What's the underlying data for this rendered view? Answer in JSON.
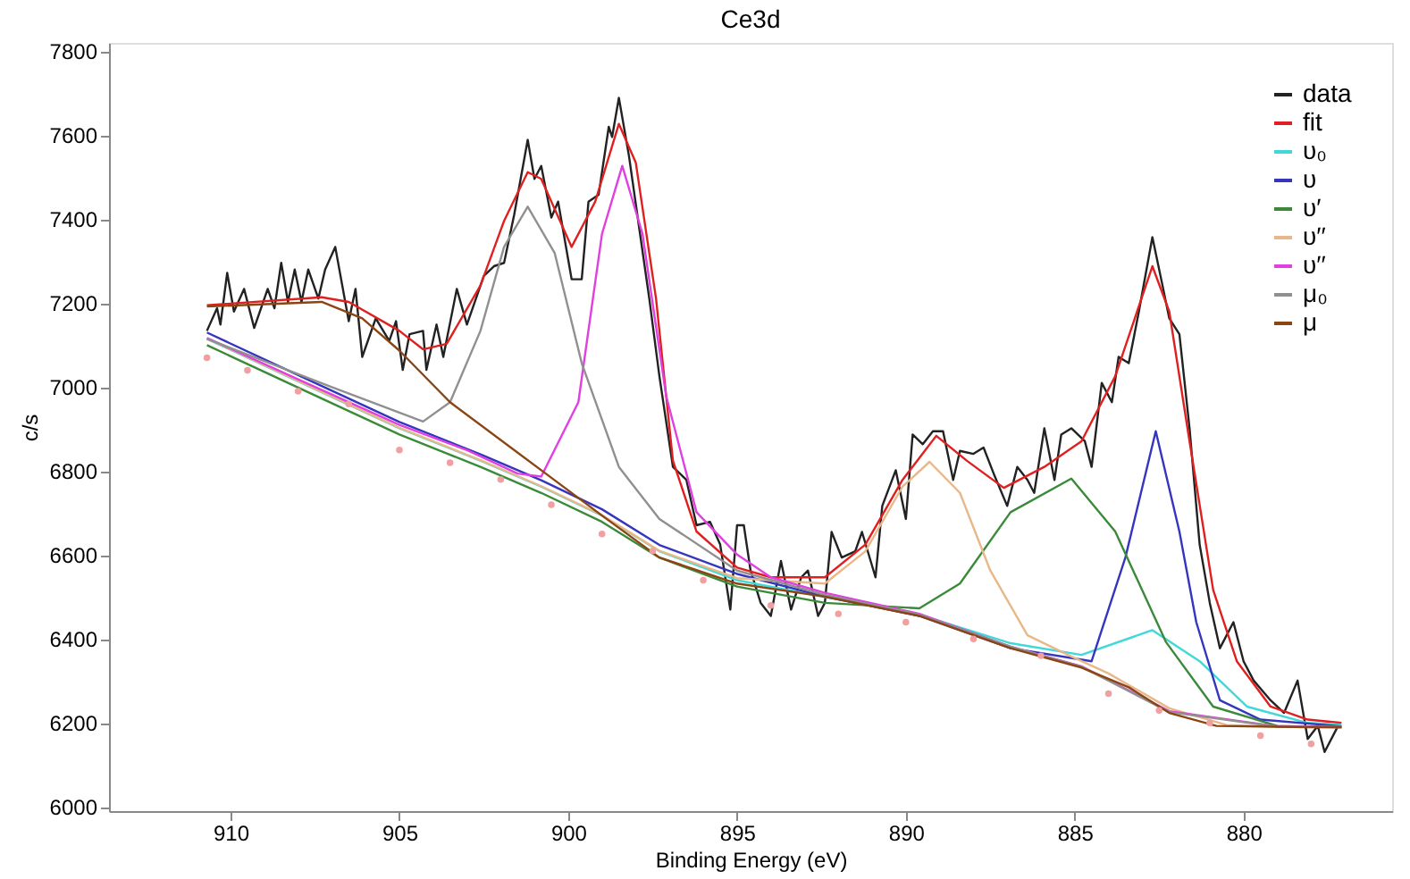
{
  "chart_data": {
    "type": "line",
    "title": "Ce3d",
    "xlabel": "Binding Energy (eV)",
    "ylabel": "c/s",
    "xlim": [
      913.6,
      875.6
    ],
    "ylim": [
      5990,
      7820
    ],
    "xticks": [
      910,
      905,
      900,
      895,
      890,
      885,
      880
    ],
    "yticks": [
      6000,
      6200,
      6400,
      6600,
      6800,
      7000,
      7200,
      7400,
      7600,
      7800
    ],
    "grid": false,
    "legend": "top right",
    "line_style": "solid",
    "series": [
      {
        "name": "data",
        "color": "#222222",
        "x": [
          910.7,
          910.4,
          910.3,
          910.1,
          909.9,
          909.6,
          909.3,
          908.9,
          908.7,
          908.5,
          908.3,
          908.1,
          907.9,
          907.7,
          907.4,
          907.2,
          906.9,
          906.5,
          906.3,
          906.1,
          905.7,
          905.3,
          905.1,
          904.9,
          904.7,
          904.3,
          904.2,
          903.9,
          903.7,
          903.3,
          903.0,
          902.5,
          902.2,
          901.9,
          901.6,
          901.2,
          901.0,
          900.8,
          900.5,
          900.3,
          899.9,
          899.6,
          899.4,
          899.1,
          898.8,
          898.7,
          898.5,
          898.2,
          897.9,
          897.6,
          897.3,
          896.9,
          896.5,
          896.2,
          895.8,
          895.5,
          895.2,
          895.0,
          894.8,
          894.6,
          894.3,
          894.0,
          893.7,
          893.4,
          893.1,
          892.9,
          892.6,
          892.4,
          892.2,
          891.9,
          891.5,
          891.3,
          890.9,
          890.7,
          890.3,
          890.0,
          889.8,
          889.5,
          889.2,
          888.9,
          888.6,
          888.4,
          888.0,
          887.7,
          887.4,
          887.0,
          886.7,
          886.4,
          886.2,
          885.9,
          885.6,
          885.4,
          885.1,
          884.7,
          884.5,
          884.2,
          883.9,
          883.7,
          883.4,
          883.1,
          882.7,
          882.4,
          882.2,
          881.9,
          881.6,
          881.3,
          881.0,
          880.7,
          880.3,
          880.0,
          879.7,
          879.2,
          878.8,
          878.4,
          878.1,
          877.8,
          877.6,
          877.2
        ],
        "values": [
          7134,
          7188,
          7149,
          7272,
          7180,
          7234,
          7141,
          7234,
          7188,
          7296,
          7203,
          7280,
          7203,
          7280,
          7211,
          7280,
          7334,
          7157,
          7234,
          7072,
          7164,
          7110,
          7157,
          7041,
          7126,
          7134,
          7041,
          7149,
          7072,
          7234,
          7149,
          7265,
          7288,
          7296,
          7411,
          7589,
          7496,
          7527,
          7404,
          7442,
          7257,
          7257,
          7442,
          7458,
          7620,
          7596,
          7689,
          7550,
          7380,
          7211,
          7026,
          6810,
          6779,
          6671,
          6679,
          6625,
          6470,
          6671,
          6671,
          6563,
          6486,
          6455,
          6586,
          6470,
          6547,
          6563,
          6455,
          6486,
          6655,
          6594,
          6609,
          6655,
          6547,
          6717,
          6802,
          6686,
          6887,
          6864,
          6895,
          6895,
          6779,
          6848,
          6841,
          6856,
          6794,
          6717,
          6810,
          6779,
          6748,
          6902,
          6779,
          6887,
          6902,
          6871,
          6810,
          7010,
          6964,
          7072,
          7057,
          7180,
          7357,
          7242,
          7164,
          7126,
          6902,
          6625,
          6486,
          6378,
          6440,
          6347,
          6301,
          6254,
          6224,
          6301,
          6162,
          6193,
          6131,
          6193
        ]
      },
      {
        "name": "fit",
        "color": "#e02020",
        "x": [
          910.7,
          907.3,
          906.5,
          905.0,
          904.3,
          903.6,
          902.6,
          901.9,
          901.2,
          900.8,
          899.9,
          899.2,
          898.5,
          898.0,
          897.4,
          896.9,
          896.2,
          895.0,
          894.0,
          892.4,
          891.2,
          890.1,
          889.1,
          888.2,
          887.1,
          885.9,
          884.8,
          883.8,
          882.7,
          882.2,
          881.6,
          880.9,
          880.2,
          879.2,
          878.1,
          877.1
        ],
        "values": [
          7195,
          7214,
          7203,
          7134,
          7090,
          7103,
          7242,
          7396,
          7512,
          7496,
          7334,
          7442,
          7627,
          7535,
          7211,
          6825,
          6656,
          6570,
          6547,
          6547,
          6625,
          6779,
          6884,
          6825,
          6760,
          6810,
          6871,
          7026,
          7288,
          7180,
          6871,
          6517,
          6347,
          6239,
          6208,
          6200
        ]
      },
      {
        "name": "υ₀",
        "color": "#40d8d8",
        "x": [
          910.7,
          907.9,
          905.0,
          902.6,
          900.8,
          899.0,
          897.3,
          895.0,
          892.4,
          889.6,
          886.9,
          884.8,
          882.7,
          881.3,
          879.9,
          878.1,
          877.1
        ],
        "values": [
          7115,
          7010,
          6902,
          6825,
          6763,
          6694,
          6609,
          6540,
          6500,
          6458,
          6390,
          6362,
          6421,
          6347,
          6239,
          6200,
          6196
        ]
      },
      {
        "name": "υ",
        "color": "#3535c0",
        "x": [
          910.7,
          907.9,
          905.0,
          902.6,
          900.8,
          899.0,
          897.3,
          895.0,
          892.4,
          889.6,
          886.9,
          884.5,
          883.5,
          882.6,
          881.9,
          881.4,
          880.7,
          879.5,
          877.1
        ],
        "values": [
          7130,
          7025,
          6917,
          6840,
          6778,
          6709,
          6624,
          6555,
          6501,
          6455,
          6378,
          6347,
          6594,
          6895,
          6656,
          6440,
          6254,
          6208,
          6192
        ]
      },
      {
        "name": "υ′",
        "color": "#3a8a3a",
        "x": [
          910.7,
          907.9,
          905.0,
          902.6,
          900.8,
          899.0,
          897.3,
          895.0,
          892.4,
          889.6,
          888.4,
          886.9,
          885.1,
          883.8,
          882.3,
          880.9,
          879.0,
          877.1
        ],
        "values": [
          7100,
          6995,
          6887,
          6810,
          6748,
          6679,
          6594,
          6525,
          6486,
          6473,
          6532,
          6702,
          6782,
          6656,
          6393,
          6239,
          6193,
          6190
        ]
      },
      {
        "name": "υ′′",
        "color": "#e8b888",
        "x": [
          910.7,
          907.9,
          905.0,
          902.6,
          900.8,
          899.0,
          897.3,
          895.0,
          892.4,
          891.2,
          890.1,
          889.3,
          888.4,
          887.5,
          886.4,
          885.2,
          884.0,
          882.2,
          880.5,
          879.0,
          877.1
        ],
        "values": [
          7116,
          7011,
          6903,
          6826,
          6764,
          6695,
          6610,
          6545,
          6532,
          6609,
          6763,
          6822,
          6748,
          6563,
          6409,
          6362,
          6318,
          6235,
          6195,
          6191,
          6190
        ]
      },
      {
        "name": "υ′′",
        "color": "#e040e0",
        "x": [
          910.7,
          907.9,
          905.0,
          903.0,
          901.5,
          900.8,
          899.7,
          899.0,
          898.4,
          897.8,
          897.1,
          896.2,
          895.0,
          894.0,
          892.4,
          889.6,
          886.9,
          884.8,
          882.2,
          879.0,
          877.1
        ],
        "values": [
          7117,
          7015,
          6910,
          6850,
          6794,
          6787,
          6964,
          7365,
          7527,
          7365,
          6979,
          6702,
          6601,
          6547,
          6510,
          6460,
          6382,
          6335,
          6228,
          6192,
          6190
        ]
      },
      {
        "name": "μ₀",
        "color": "#909090",
        "x": [
          910.7,
          907.0,
          904.3,
          903.5,
          902.6,
          901.9,
          901.2,
          900.4,
          899.6,
          898.5,
          897.3,
          895.0,
          892.4,
          889.6,
          886.9,
          884.8,
          882.2,
          879.0,
          877.1
        ],
        "values": [
          7115,
          7000,
          6918,
          6964,
          7134,
          7334,
          7430,
          7319,
          7057,
          6810,
          6686,
          6563,
          6505,
          6458,
          6382,
          6334,
          6226,
          6191,
          6190
        ]
      },
      {
        "name": "μ",
        "color": "#8b4513",
        "x": [
          910.7,
          907.3,
          906.1,
          905.0,
          903.5,
          900.8,
          899.0,
          897.3,
          895.0,
          892.4,
          889.6,
          886.9,
          884.8,
          883.4,
          882.2,
          880.8,
          878.1,
          877.1
        ],
        "values": [
          7192,
          7203,
          7164,
          7087,
          6964,
          6802,
          6694,
          6594,
          6532,
          6501,
          6455,
          6378,
          6332,
          6285,
          6224,
          6193,
          6190,
          6190
        ]
      },
      {
        "type": "scatter",
        "marker": "circle",
        "color": "#f0a0a0",
        "x": [
          910.7,
          909.5,
          908.0,
          906.5,
          905.0,
          903.5,
          902.0,
          900.5,
          899.0,
          897.5,
          896.0,
          894.0,
          892.0,
          890.0,
          888.0,
          886.0,
          884.0,
          882.5,
          881.0,
          879.5,
          878.0
        ],
        "values": [
          7070,
          7040,
          6990,
          6960,
          6850,
          6820,
          6780,
          6720,
          6650,
          6610,
          6540,
          6480,
          6460,
          6440,
          6400,
          6360,
          6270,
          6230,
          6200,
          6170,
          6150
        ]
      }
    ]
  }
}
